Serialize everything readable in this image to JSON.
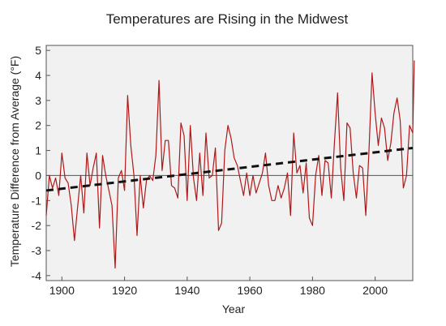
{
  "chart_data": {
    "type": "line",
    "title": "Temperatures are Rising in the Midwest",
    "xlabel": "Year",
    "ylabel": "Temperature Difference from Average (°F)",
    "xlim": [
      1895,
      2012
    ],
    "ylim": [
      -4.2,
      5.2
    ],
    "x_ticks": [
      1900,
      1920,
      1940,
      1960,
      1980,
      2000
    ],
    "y_ticks": [
      -4,
      -3,
      -2,
      -1,
      0,
      1,
      2,
      3,
      4,
      5
    ],
    "grid": false,
    "zero_line": 0,
    "colors": {
      "series": "#b01818",
      "trend": "#111111",
      "plot_bg": "#f1f1f1",
      "zero_line": "#555555"
    },
    "series": [
      {
        "values": [
          [
            1895,
            -1.6
          ],
          [
            1896,
            0.0
          ],
          [
            1897,
            -0.5
          ],
          [
            1898,
            -0.1
          ],
          [
            1899,
            -0.8
          ],
          [
            1900,
            0.9
          ],
          [
            1901,
            -0.1
          ],
          [
            1902,
            -0.3
          ],
          [
            1903,
            -1.2
          ],
          [
            1904,
            -2.6
          ],
          [
            1905,
            -1.3
          ],
          [
            1906,
            0.0
          ],
          [
            1907,
            -1.5
          ],
          [
            1908,
            0.9
          ],
          [
            1909,
            -0.4
          ],
          [
            1910,
            0.3
          ],
          [
            1911,
            0.9
          ],
          [
            1912,
            -2.1
          ],
          [
            1913,
            0.8
          ],
          [
            1914,
            0.0
          ],
          [
            1915,
            -0.6
          ],
          [
            1916,
            -1.2
          ],
          [
            1917,
            -3.7
          ],
          [
            1918,
            -0.1
          ],
          [
            1919,
            0.2
          ],
          [
            1920,
            -0.6
          ],
          [
            1921,
            3.2
          ],
          [
            1922,
            1.2
          ],
          [
            1923,
            0.0
          ],
          [
            1924,
            -2.4
          ],
          [
            1925,
            0.0
          ],
          [
            1926,
            -1.3
          ],
          [
            1927,
            -0.2
          ],
          [
            1928,
            0.0
          ],
          [
            1929,
            -0.2
          ],
          [
            1930,
            0.8
          ],
          [
            1931,
            3.8
          ],
          [
            1932,
            0.2
          ],
          [
            1933,
            1.4
          ],
          [
            1934,
            1.4
          ],
          [
            1935,
            -0.4
          ],
          [
            1936,
            -0.5
          ],
          [
            1937,
            -0.9
          ],
          [
            1938,
            2.1
          ],
          [
            1939,
            1.6
          ],
          [
            1940,
            -1.0
          ],
          [
            1941,
            2.0
          ],
          [
            1942,
            -0.1
          ],
          [
            1943,
            -1.0
          ],
          [
            1944,
            0.9
          ],
          [
            1945,
            -0.8
          ],
          [
            1946,
            1.7
          ],
          [
            1947,
            -0.1
          ],
          [
            1948,
            0.0
          ],
          [
            1949,
            1.1
          ],
          [
            1950,
            -2.2
          ],
          [
            1951,
            -1.9
          ],
          [
            1952,
            1.0
          ],
          [
            1953,
            2.0
          ],
          [
            1954,
            1.5
          ],
          [
            1955,
            0.7
          ],
          [
            1956,
            0.4
          ],
          [
            1957,
            -0.2
          ],
          [
            1958,
            -0.8
          ],
          [
            1959,
            0.1
          ],
          [
            1960,
            -0.8
          ],
          [
            1961,
            0.0
          ],
          [
            1962,
            -0.7
          ],
          [
            1963,
            -0.3
          ],
          [
            1964,
            0.1
          ],
          [
            1965,
            0.9
          ],
          [
            1966,
            -0.4
          ],
          [
            1967,
            -1.0
          ],
          [
            1968,
            -1.0
          ],
          [
            1969,
            -0.4
          ],
          [
            1970,
            -0.9
          ],
          [
            1971,
            -0.5
          ],
          [
            1972,
            0.1
          ],
          [
            1973,
            -1.6
          ],
          [
            1974,
            1.7
          ],
          [
            1975,
            0.1
          ],
          [
            1976,
            0.4
          ],
          [
            1977,
            -0.7
          ],
          [
            1978,
            0.5
          ],
          [
            1979,
            -1.7
          ],
          [
            1980,
            -2.0
          ],
          [
            1981,
            0.0
          ],
          [
            1982,
            0.8
          ],
          [
            1983,
            -0.8
          ],
          [
            1984,
            0.6
          ],
          [
            1985,
            0.5
          ],
          [
            1986,
            -0.9
          ],
          [
            1987,
            1.3
          ],
          [
            1988,
            3.3
          ],
          [
            1989,
            0.3
          ],
          [
            1990,
            -1.0
          ],
          [
            1991,
            2.1
          ],
          [
            1992,
            1.9
          ],
          [
            1993,
            0.1
          ],
          [
            1994,
            -0.9
          ],
          [
            1995,
            0.4
          ],
          [
            1996,
            0.3
          ],
          [
            1997,
            -1.6
          ],
          [
            1998,
            0.9
          ],
          [
            1999,
            4.1
          ],
          [
            2000,
            2.5
          ],
          [
            2001,
            1.2
          ],
          [
            2002,
            2.3
          ],
          [
            2003,
            1.9
          ],
          [
            2004,
            0.6
          ],
          [
            2005,
            1.3
          ],
          [
            2006,
            2.5
          ],
          [
            2007,
            3.1
          ],
          [
            2008,
            2.2
          ],
          [
            2009,
            -0.5
          ],
          [
            2010,
            0.0
          ],
          [
            2011,
            2.0
          ],
          [
            2012,
            1.7
          ],
          [
            2012.5,
            4.6
          ]
        ]
      }
    ],
    "trend_line": {
      "style": "dashed",
      "values": [
        [
          1895,
          -0.6
        ],
        [
          2012,
          1.1
        ]
      ]
    }
  }
}
